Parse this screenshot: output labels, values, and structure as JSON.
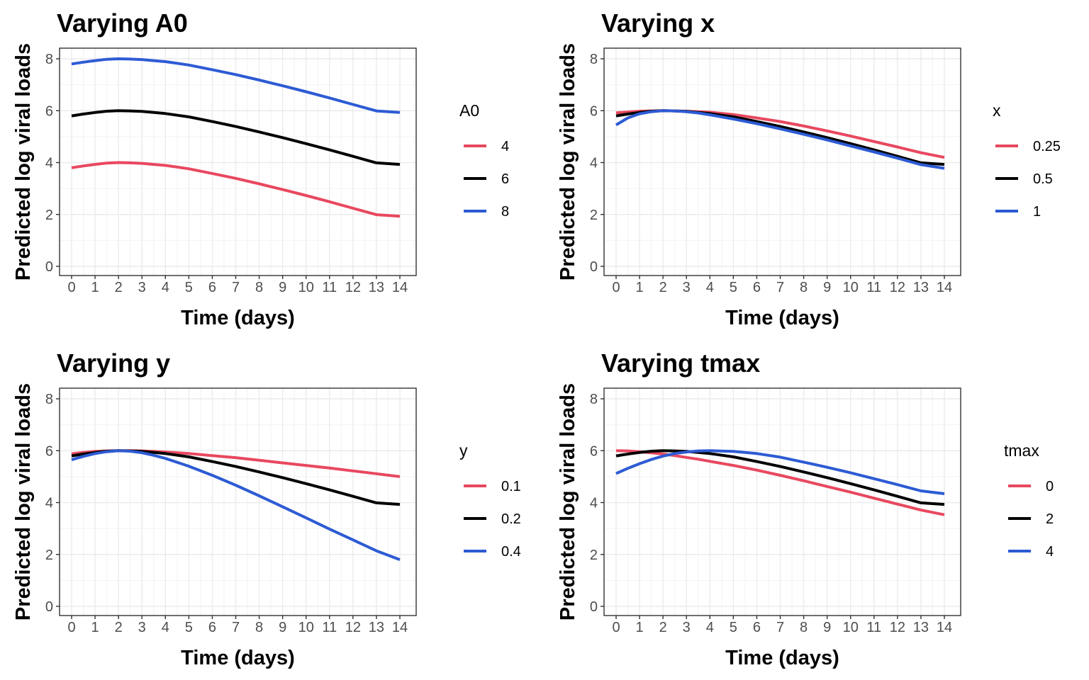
{
  "chart_data": [
    {
      "type": "line",
      "title": "Varying A0",
      "xlabel": "Time (days)",
      "ylabel": "Predicted log viral loads",
      "xlim": [
        0,
        14
      ],
      "ylim": [
        0,
        8
      ],
      "xticks": [
        0,
        1,
        2,
        3,
        4,
        5,
        6,
        7,
        8,
        9,
        10,
        11,
        12,
        13,
        14
      ],
      "yticks": [
        0,
        2,
        4,
        6,
        8
      ],
      "grid": true,
      "legend": {
        "title": "A0",
        "position": "right"
      },
      "x": [
        0,
        0.5,
        1,
        1.5,
        2,
        2.5,
        3,
        3.5,
        4,
        5,
        6,
        7,
        8,
        9,
        10,
        11,
        12,
        13,
        14
      ],
      "series": [
        {
          "name": "4",
          "color": "#e8485f",
          "values": [
            3.8,
            3.87,
            3.93,
            3.98,
            4.0,
            3.99,
            3.97,
            3.93,
            3.89,
            3.76,
            3.58,
            3.39,
            3.18,
            2.96,
            2.73,
            2.49,
            2.24,
            1.99,
            1.93
          ]
        },
        {
          "name": "6",
          "color": "#000000",
          "values": [
            5.8,
            5.87,
            5.93,
            5.98,
            6.0,
            5.99,
            5.97,
            5.93,
            5.89,
            5.76,
            5.58,
            5.39,
            5.18,
            4.96,
            4.73,
            4.49,
            4.24,
            3.99,
            3.93
          ]
        },
        {
          "name": "8",
          "color": "#2d5bd4",
          "values": [
            7.8,
            7.87,
            7.93,
            7.98,
            8.0,
            7.99,
            7.97,
            7.93,
            7.89,
            7.76,
            7.58,
            7.39,
            7.18,
            6.96,
            6.73,
            6.49,
            6.24,
            5.99,
            5.93
          ]
        }
      ]
    },
    {
      "type": "line",
      "title": "Varying x",
      "xlabel": "Time (days)",
      "ylabel": "Predicted log viral loads",
      "xlim": [
        0,
        14
      ],
      "ylim": [
        0,
        8
      ],
      "xticks": [
        0,
        1,
        2,
        3,
        4,
        5,
        6,
        7,
        8,
        9,
        10,
        11,
        12,
        13,
        14
      ],
      "yticks": [
        0,
        2,
        4,
        6,
        8
      ],
      "grid": true,
      "legend": {
        "title": "x",
        "position": "right"
      },
      "x": [
        0,
        0.5,
        1,
        1.5,
        2,
        2.5,
        3,
        3.5,
        4,
        5,
        6,
        7,
        8,
        9,
        10,
        11,
        12,
        13,
        14
      ],
      "series": [
        {
          "name": "0.25",
          "color": "#e8485f",
          "values": [
            5.92,
            5.95,
            5.98,
            5.99,
            6.0,
            5.99,
            5.98,
            5.96,
            5.94,
            5.85,
            5.72,
            5.58,
            5.41,
            5.22,
            5.02,
            4.81,
            4.6,
            4.38,
            4.2
          ]
        },
        {
          "name": "0.5",
          "color": "#000000",
          "values": [
            5.8,
            5.87,
            5.93,
            5.98,
            6.0,
            5.99,
            5.97,
            5.93,
            5.89,
            5.76,
            5.58,
            5.39,
            5.18,
            4.96,
            4.73,
            4.49,
            4.24,
            3.99,
            3.93
          ]
        },
        {
          "name": "1",
          "color": "#2d5bd4",
          "values": [
            5.45,
            5.72,
            5.88,
            5.96,
            6.0,
            5.99,
            5.96,
            5.91,
            5.84,
            5.68,
            5.5,
            5.3,
            5.09,
            4.87,
            4.64,
            4.41,
            4.17,
            3.92,
            3.78
          ]
        }
      ]
    },
    {
      "type": "line",
      "title": "Varying y",
      "xlabel": "Time (days)",
      "ylabel": "Predicted log viral loads",
      "xlim": [
        0,
        14
      ],
      "ylim": [
        0,
        8
      ],
      "xticks": [
        0,
        1,
        2,
        3,
        4,
        5,
        6,
        7,
        8,
        9,
        10,
        11,
        12,
        13,
        14
      ],
      "yticks": [
        0,
        2,
        4,
        6,
        8
      ],
      "grid": true,
      "legend": {
        "title": "y",
        "position": "right"
      },
      "x": [
        0,
        0.5,
        1,
        1.5,
        2,
        2.5,
        3,
        3.5,
        4,
        5,
        6,
        7,
        8,
        9,
        10,
        11,
        12,
        13,
        14
      ],
      "series": [
        {
          "name": "0.1",
          "color": "#e8485f",
          "values": [
            5.88,
            5.93,
            5.97,
            5.99,
            6.0,
            6.0,
            5.99,
            5.97,
            5.95,
            5.89,
            5.81,
            5.73,
            5.63,
            5.53,
            5.43,
            5.33,
            5.22,
            5.11,
            5.0
          ]
        },
        {
          "name": "0.2",
          "color": "#000000",
          "values": [
            5.8,
            5.87,
            5.93,
            5.98,
            6.0,
            5.99,
            5.97,
            5.93,
            5.89,
            5.76,
            5.58,
            5.39,
            5.18,
            4.96,
            4.73,
            4.49,
            4.24,
            3.99,
            3.93
          ]
        },
        {
          "name": "0.4",
          "color": "#2d5bd4",
          "values": [
            5.65,
            5.78,
            5.89,
            5.96,
            6.0,
            5.98,
            5.92,
            5.82,
            5.7,
            5.4,
            5.05,
            4.67,
            4.26,
            3.84,
            3.41,
            2.98,
            2.56,
            2.14,
            1.8
          ]
        }
      ]
    },
    {
      "type": "line",
      "title": "Varying tmax",
      "xlabel": "Time (days)",
      "ylabel": "Predicted log viral loads",
      "xlim": [
        0,
        14
      ],
      "ylim": [
        0,
        8
      ],
      "xticks": [
        0,
        1,
        2,
        3,
        4,
        5,
        6,
        7,
        8,
        9,
        10,
        11,
        12,
        13,
        14
      ],
      "yticks": [
        0,
        2,
        4,
        6,
        8
      ],
      "grid": true,
      "legend": {
        "title": "tmax",
        "position": "right"
      },
      "x": [
        0,
        0.5,
        1,
        1.5,
        2,
        2.5,
        3,
        3.5,
        4,
        5,
        6,
        7,
        8,
        9,
        10,
        11,
        12,
        13,
        14
      ],
      "series": [
        {
          "name": "0",
          "color": "#e8485f",
          "values": [
            6.0,
            5.99,
            5.96,
            5.92,
            5.87,
            5.81,
            5.74,
            5.67,
            5.59,
            5.43,
            5.25,
            5.05,
            4.84,
            4.62,
            4.4,
            4.17,
            3.94,
            3.71,
            3.53
          ]
        },
        {
          "name": "2",
          "color": "#000000",
          "values": [
            5.8,
            5.87,
            5.93,
            5.98,
            6.0,
            5.99,
            5.97,
            5.93,
            5.89,
            5.76,
            5.58,
            5.39,
            5.18,
            4.96,
            4.73,
            4.49,
            4.24,
            3.99,
            3.93
          ]
        },
        {
          "name": "4",
          "color": "#2d5bd4",
          "values": [
            5.12,
            5.32,
            5.5,
            5.66,
            5.79,
            5.89,
            5.95,
            5.99,
            6.0,
            5.97,
            5.89,
            5.75,
            5.56,
            5.36,
            5.15,
            4.92,
            4.69,
            4.45,
            4.34
          ]
        }
      ]
    }
  ]
}
